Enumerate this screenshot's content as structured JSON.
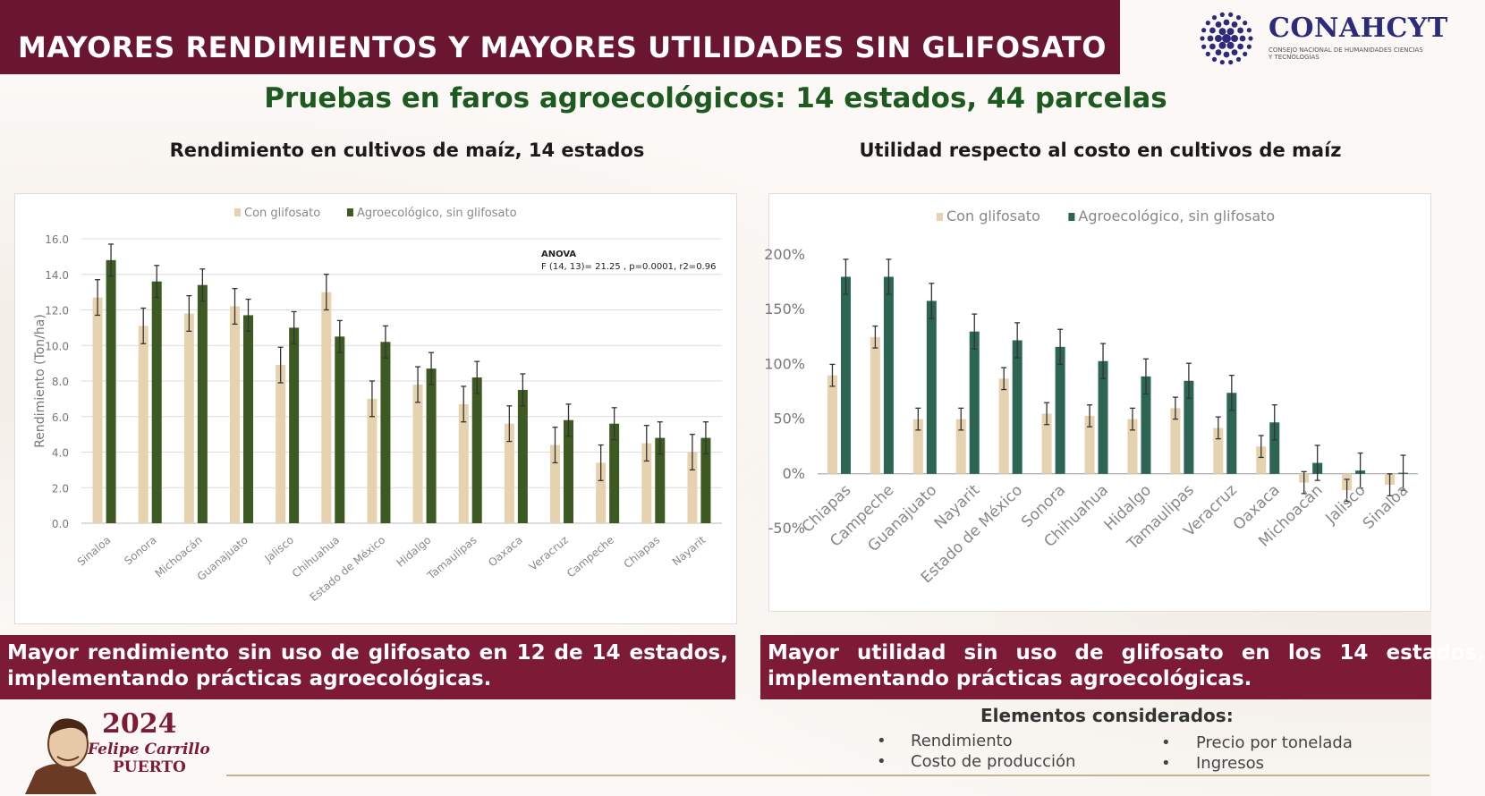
{
  "header": {
    "title": "MAYORES RENDIMIENTOS Y MAYORES UTILIDADES SIN GLIFOSATO",
    "logo_name": "CONAHCYT",
    "logo_subtitle": "CONSEJO NACIONAL DE HUMANIDADES CIENCIAS Y TECNOLOGÍAS",
    "logo_icon": "conahcyt-dots-logo"
  },
  "subtitle": "Pruebas en faros agroecológicos: 14 estados, 44 parcelas",
  "colors": {
    "brand": "#6b1631",
    "banner": "#7d1a36",
    "con": "#e6d2ae",
    "sin_left": "#3e5a23",
    "sin_right": "#2d6555",
    "subtitle": "#1d5a1f"
  },
  "chart_data": [
    {
      "type": "bar",
      "title": "Rendimiento en cultivos de maíz, 14 estados",
      "ylabel": "Rendimiento (Ton/ha)",
      "ylim": [
        0,
        16
      ],
      "yticks": [
        "0.0",
        "2.0",
        "4.0",
        "6.0",
        "8.0",
        "10.0",
        "12.0",
        "14.0",
        "16.0"
      ],
      "grid": true,
      "legend": "top-center",
      "annotation": {
        "title": "ANOVA",
        "text": "F (14, 13)= 21.25 , p=0.0001, r2=0.96"
      },
      "categories": [
        "Sinaloa",
        "Sonora",
        "Michoacán",
        "Guanajuato",
        "Jalisco",
        "Chihuahua",
        "Estado de México",
        "Hidalgo",
        "Tamaulipas",
        "Oaxaca",
        "Veracruz",
        "Campeche",
        "Chiapas",
        "Nayarit"
      ],
      "series": [
        {
          "name": "Con glifosato",
          "values": [
            12.7,
            11.1,
            11.8,
            12.2,
            8.9,
            13.0,
            7.0,
            7.8,
            6.7,
            5.6,
            4.4,
            3.4,
            4.5,
            4.0
          ],
          "errors": [
            1.0,
            1.0,
            1.0,
            1.0,
            1.0,
            1.0,
            1.0,
            1.0,
            1.0,
            1.0,
            1.0,
            1.0,
            1.0,
            1.0
          ]
        },
        {
          "name": "Agroecológico, sin glifosato",
          "values": [
            14.8,
            13.6,
            13.4,
            11.7,
            11.0,
            10.5,
            10.2,
            8.7,
            8.2,
            7.5,
            5.8,
            5.6,
            4.8,
            4.8
          ],
          "errors": [
            0.9,
            0.9,
            0.9,
            0.9,
            0.9,
            0.9,
            0.9,
            0.9,
            0.9,
            0.9,
            0.9,
            0.9,
            0.9,
            0.9
          ]
        }
      ]
    },
    {
      "type": "bar",
      "title": "Utilidad respecto al costo en cultivos de maíz",
      "ylim": [
        -50,
        200
      ],
      "yticks": [
        "-50%",
        "0%",
        "50%",
        "100%",
        "150%",
        "200%"
      ],
      "legend": "top-center",
      "categories": [
        "Chiapas",
        "Campeche",
        "Guanajuato",
        "Nayarit",
        "Estado de México",
        "Sonora",
        "Chihuahua",
        "Hidalgo",
        "Tamaulipas",
        "Veracruz",
        "Oaxaca",
        "Michoacán",
        "Jalisco",
        "Sinaloa"
      ],
      "series": [
        {
          "name": "Con glifosato",
          "values": [
            90,
            125,
            50,
            50,
            87,
            55,
            53,
            50,
            60,
            42,
            25,
            -8,
            -15,
            -10
          ],
          "errors": [
            10,
            10,
            10,
            10,
            10,
            10,
            10,
            10,
            10,
            10,
            10,
            10,
            10,
            10
          ]
        },
        {
          "name": "Agroecológico, sin glifosato",
          "values": [
            180,
            180,
            158,
            130,
            122,
            116,
            103,
            89,
            85,
            74,
            47,
            10,
            3,
            1
          ],
          "errors": [
            16,
            16,
            16,
            16,
            16,
            16,
            16,
            16,
            16,
            16,
            16,
            16,
            16,
            16
          ]
        }
      ]
    }
  ],
  "banners": {
    "left": "Mayor rendimiento sin uso de glifosato en 12 de 14 estados, implementando prácticas agroecológicas.",
    "right": "Mayor utilidad sin uso de glifosato en los 14 estados, implementando prácticas agroecológicas."
  },
  "elements": {
    "title": "Elementos considerados:",
    "items": [
      "Rendimiento",
      "Costo de producción",
      "Precio por tonelada",
      "Ingresos"
    ]
  },
  "footer": {
    "year": "2024",
    "name_line1": "Felipe Carrillo",
    "name_line2": "PUERTO",
    "portrait_icon": "portrait-illustration"
  }
}
